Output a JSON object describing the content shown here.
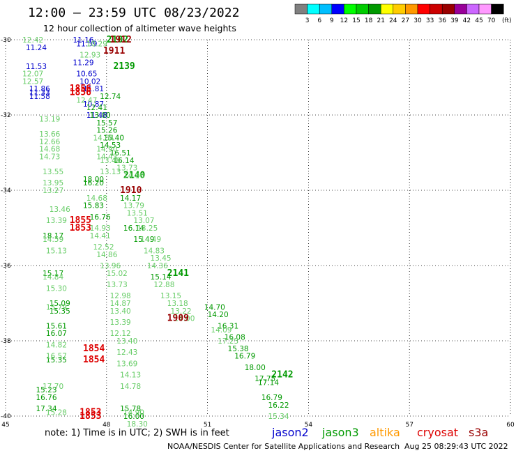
{
  "header": {
    "title": "12:00 – 23:59 UTC 08/23/2022",
    "subtitle": "12 hour collection of altimeter wave heights"
  },
  "colorbar": {
    "unit": "(ft)",
    "colors": [
      "#808080",
      "#00ffff",
      "#00bfff",
      "#0000ff",
      "#00ff00",
      "#00cc00",
      "#009900",
      "#ffff00",
      "#ffcc00",
      "#ff9900",
      "#ff0000",
      "#cc0000",
      "#990000",
      "#990099",
      "#cc66ff",
      "#ff99ff",
      "#000000"
    ],
    "labels": [
      "3",
      "6",
      "9",
      "12",
      "15",
      "18",
      "21",
      "24",
      "27",
      "30",
      "33",
      "36",
      "39",
      "42",
      "45",
      "70"
    ]
  },
  "chart_data": {
    "type": "scatter",
    "title": "12:00 – 23:59 UTC 08/23/2022",
    "xlim": [
      45,
      60
    ],
    "ylim": [
      -40,
      -30
    ],
    "x_ticks": [
      "45",
      "48",
      "51",
      "54",
      "57",
      "60"
    ],
    "y_ticks": [
      "-30",
      "-32",
      "-34",
      "-36",
      "-38",
      "-40"
    ],
    "grid": true,
    "series": [
      {
        "name": "jason2",
        "color": "#0000cc",
        "points": [
          [
            45.6,
            -30.2,
            "11.24"
          ],
          [
            45.6,
            -30.7,
            "11.53"
          ],
          [
            45.7,
            -31.3,
            "11.86"
          ],
          [
            45.7,
            -31.4,
            "11.33"
          ],
          [
            45.7,
            -31.5,
            "11.58"
          ],
          [
            47.0,
            -30.0,
            "11.16"
          ],
          [
            47.1,
            -30.1,
            "11.59"
          ],
          [
            47.0,
            -30.6,
            "11.29"
          ],
          [
            47.1,
            -30.9,
            "10.65"
          ],
          [
            47.2,
            -31.1,
            "10.02"
          ],
          [
            47.3,
            -31.3,
            "11.81"
          ],
          [
            47.3,
            -31.7,
            "10.87"
          ],
          [
            47.4,
            -32.0,
            "11.48"
          ]
        ]
      },
      {
        "name": "jason3",
        "color": "#009900",
        "points": [
          [
            48.0,
            -30.0,
            "2102"
          ],
          [
            48.2,
            -30.7,
            "2139"
          ],
          [
            47.8,
            -31.5,
            "12.74"
          ],
          [
            47.4,
            -31.8,
            "12.41"
          ],
          [
            47.5,
            -32.0,
            "13.00"
          ],
          [
            47.7,
            -32.2,
            "15.57"
          ],
          [
            47.7,
            -32.4,
            "15.26"
          ],
          [
            47.9,
            -32.6,
            "15.40"
          ],
          [
            47.8,
            -32.8,
            "14.53"
          ],
          [
            48.1,
            -33.0,
            "16.51"
          ],
          [
            48.2,
            -33.2,
            "16.14"
          ],
          [
            47.3,
            -33.7,
            "18.00"
          ],
          [
            46.1,
            -35.2,
            "18.17"
          ],
          [
            46.1,
            -36.2,
            "15.17"
          ],
          [
            46.3,
            -37.0,
            "15.09"
          ],
          [
            46.3,
            -37.2,
            "15.35"
          ],
          [
            46.2,
            -37.6,
            "15.61"
          ],
          [
            46.2,
            -37.8,
            "16.07"
          ],
          [
            46.2,
            -38.5,
            "15.35"
          ],
          [
            45.9,
            -39.3,
            "15.23"
          ],
          [
            45.9,
            -39.5,
            "16.76"
          ],
          [
            45.9,
            -39.8,
            "17.34"
          ],
          [
            48.5,
            -33.6,
            "2140"
          ],
          [
            47.3,
            -33.8,
            "16.20"
          ],
          [
            47.3,
            -34.4,
            "15.83"
          ],
          [
            47.5,
            -34.7,
            "16.76"
          ],
          [
            48.4,
            -34.2,
            "14.17"
          ],
          [
            48.5,
            -35.0,
            "16.14"
          ],
          [
            48.8,
            -35.3,
            "15.49"
          ],
          [
            49.3,
            -36.3,
            "15.14"
          ],
          [
            49.8,
            -36.2,
            "2141"
          ],
          [
            50.9,
            -37.1,
            "14.70"
          ],
          [
            51.0,
            -37.3,
            "14.20"
          ],
          [
            51.3,
            -37.6,
            "16.31"
          ],
          [
            51.5,
            -37.9,
            "16.08"
          ],
          [
            51.6,
            -38.2,
            "15.38"
          ],
          [
            51.8,
            -38.4,
            "16.79"
          ],
          [
            52.1,
            -38.7,
            "18.00"
          ],
          [
            52.4,
            -39.0,
            "17.75"
          ],
          [
            52.9,
            -38.9,
            "2142"
          ],
          [
            52.5,
            -39.1,
            "17.14"
          ],
          [
            52.6,
            -39.5,
            "16.79"
          ],
          [
            52.8,
            -39.7,
            "16.22"
          ],
          [
            48.4,
            -39.8,
            "15.78"
          ],
          [
            48.5,
            -40.0,
            "16.00"
          ]
        ]
      },
      {
        "name": "jason3_light",
        "color": "#66cc66",
        "points": [
          [
            45.5,
            -30.0,
            "12.42"
          ],
          [
            45.5,
            -30.9,
            "12.07"
          ],
          [
            45.5,
            -31.1,
            "12.57"
          ],
          [
            46.0,
            -32.1,
            "13.19"
          ],
          [
            46.0,
            -32.5,
            "13.66"
          ],
          [
            46.0,
            -32.7,
            "12.66"
          ],
          [
            46.0,
            -32.9,
            "14.68"
          ],
          [
            46.0,
            -33.1,
            "14.73"
          ],
          [
            46.1,
            -33.5,
            "13.55"
          ],
          [
            46.1,
            -33.8,
            "13.95"
          ],
          [
            46.1,
            -34.0,
            "13.27"
          ],
          [
            46.3,
            -34.5,
            "13.46"
          ],
          [
            46.2,
            -34.8,
            "13.39"
          ],
          [
            46.1,
            -35.3,
            "14.59"
          ],
          [
            46.2,
            -35.6,
            "15.13"
          ],
          [
            46.1,
            -36.3,
            "14.84"
          ],
          [
            46.2,
            -36.6,
            "15.30"
          ],
          [
            46.2,
            -37.1,
            "15.79"
          ],
          [
            46.2,
            -38.1,
            "14.82"
          ],
          [
            46.2,
            -38.4,
            "16.57"
          ],
          [
            46.1,
            -39.2,
            "17.70"
          ],
          [
            46.2,
            -39.9,
            "15.28"
          ],
          [
            47.4,
            -30.1,
            "10.29"
          ],
          [
            47.2,
            -30.4,
            "12.93"
          ],
          [
            47.1,
            -31.6,
            "12.47"
          ],
          [
            47.6,
            -32.6,
            "14.64"
          ],
          [
            47.7,
            -32.9,
            "14.90"
          ],
          [
            47.7,
            -33.1,
            "14.43"
          ],
          [
            47.8,
            -33.2,
            "13.48"
          ],
          [
            47.8,
            -33.5,
            "13.13"
          ],
          [
            48.3,
            -33.4,
            "13.73"
          ],
          [
            48.5,
            -33.6,
            "14.96"
          ],
          [
            47.4,
            -34.2,
            "14.68"
          ],
          [
            48.5,
            -34.4,
            "13.79"
          ],
          [
            48.6,
            -34.6,
            "13.51"
          ],
          [
            48.8,
            -34.8,
            "13.07"
          ],
          [
            48.9,
            -35.0,
            "13.25"
          ],
          [
            47.5,
            -35.0,
            "14.93"
          ],
          [
            47.5,
            -35.2,
            "14.41"
          ],
          [
            47.6,
            -35.5,
            "12.52"
          ],
          [
            47.7,
            -35.7,
            "14.86"
          ],
          [
            47.8,
            -36.0,
            "13.96"
          ],
          [
            48.0,
            -36.2,
            "15.02"
          ],
          [
            48.0,
            -36.5,
            "13.73"
          ],
          [
            48.1,
            -36.8,
            "12.98"
          ],
          [
            48.1,
            -37.0,
            "14.87"
          ],
          [
            48.1,
            -37.2,
            "13.40"
          ],
          [
            48.1,
            -37.5,
            "13.39"
          ],
          [
            48.1,
            -37.8,
            "12.12"
          ],
          [
            48.3,
            -38.0,
            "13.40"
          ],
          [
            48.3,
            -38.3,
            "12.43"
          ],
          [
            48.3,
            -38.6,
            "13.69"
          ],
          [
            48.4,
            -38.9,
            "14.13"
          ],
          [
            48.4,
            -39.2,
            "14.78"
          ],
          [
            48.5,
            -39.9,
            "14.90"
          ],
          [
            48.6,
            -40.2,
            "18.30"
          ],
          [
            49.0,
            -35.3,
            "14.49"
          ],
          [
            49.1,
            -35.6,
            "14.83"
          ],
          [
            49.3,
            -35.8,
            "13.45"
          ],
          [
            49.2,
            -36.0,
            "14.36"
          ],
          [
            49.4,
            -36.5,
            "12.88"
          ],
          [
            49.6,
            -36.8,
            "13.15"
          ],
          [
            49.8,
            -37.0,
            "13.18"
          ],
          [
            49.9,
            -37.2,
            "13.22"
          ],
          [
            50.0,
            -37.4,
            "14.00"
          ],
          [
            51.1,
            -37.7,
            "14.09"
          ],
          [
            51.3,
            -38.0,
            "17.23"
          ],
          [
            52.8,
            -40.0,
            "15.34"
          ]
        ]
      },
      {
        "name": "s3a",
        "color": "#990000",
        "points": [
          [
            47.9,
            -30.3,
            "1911"
          ],
          [
            48.4,
            -34.0,
            "1910"
          ],
          [
            49.8,
            -37.4,
            "1909"
          ],
          [
            48.1,
            -30.0,
            "1912"
          ]
        ]
      },
      {
        "name": "cryosat",
        "color": "#dd0000",
        "points": [
          [
            46.9,
            -31.3,
            "1856"
          ],
          [
            46.9,
            -31.4,
            "1856"
          ],
          [
            46.9,
            -34.8,
            "1855"
          ],
          [
            46.9,
            -35.0,
            "1853"
          ],
          [
            47.3,
            -38.2,
            "1854"
          ],
          [
            47.3,
            -38.5,
            "1854"
          ],
          [
            47.2,
            -39.9,
            "1853"
          ],
          [
            47.2,
            -40.0,
            "1853"
          ]
        ]
      }
    ]
  },
  "legend": {
    "note": "note:  1) Time is in UTC; 2) SWH is in feet",
    "satellites": [
      {
        "name": "jason2",
        "color": "#0000cc"
      },
      {
        "name": "jason3",
        "color": "#009900"
      },
      {
        "name": "altika",
        "color": "#ff9900"
      },
      {
        "name": "cryosat",
        "color": "#dd0000"
      },
      {
        "name": "s3a",
        "color": "#990000"
      }
    ]
  },
  "footer": {
    "credit": "NOAA/NESDIS Center for Satellite Applications and Research",
    "timestamp": "Aug 25 08:29:43 UTC 2022"
  }
}
